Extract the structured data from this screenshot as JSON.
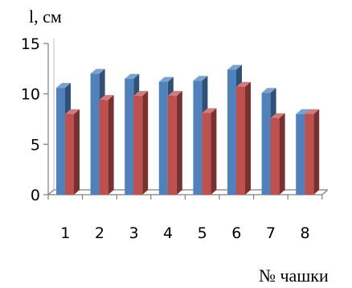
{
  "chart_data": {
    "type": "bar",
    "style": "3d-clustered",
    "categories": [
      "1",
      "2",
      "3",
      "4",
      "5",
      "6",
      "7",
      "8"
    ],
    "series": [
      {
        "values": [
          10.6,
          12.0,
          11.5,
          11.2,
          11.3,
          12.4,
          10.1,
          8.0
        ],
        "color": "#4F81BD"
      },
      {
        "values": [
          8.0,
          9.4,
          9.8,
          9.8,
          8.1,
          10.7,
          7.6,
          8.0
        ],
        "color": "#C0504D"
      }
    ],
    "xlabel": "№ чашки",
    "ylabel": "l, см",
    "ylim": [
      0,
      15
    ],
    "yticks": [
      "0",
      "5",
      "10",
      "15"
    ],
    "grid": false,
    "legend": "none"
  }
}
